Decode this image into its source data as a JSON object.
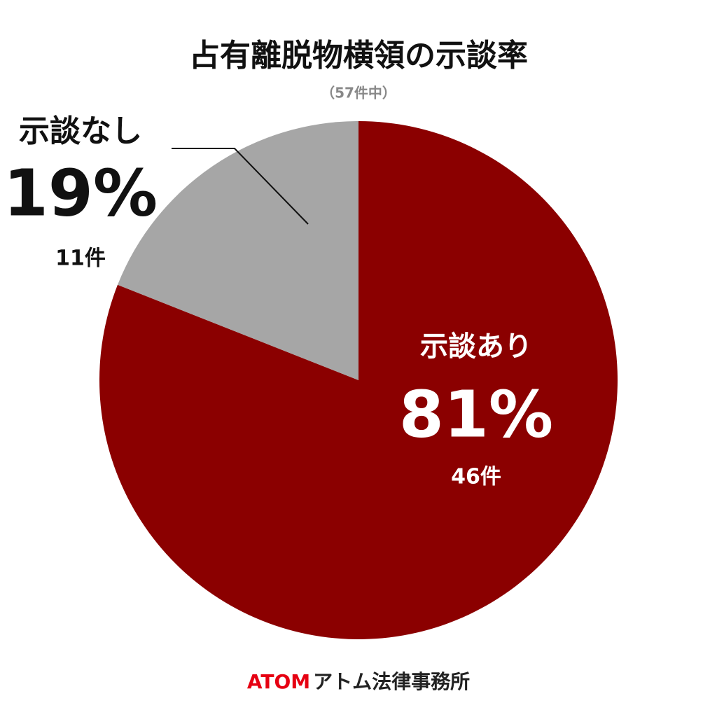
{
  "chart_data": {
    "type": "pie",
    "title": "占有離脱物横領の示談率",
    "subtitle": "（57件中）",
    "categories": [
      "示談あり",
      "示談なし"
    ],
    "values": [
      81,
      19
    ],
    "value_labels": [
      "81%",
      "19%"
    ],
    "counts": [
      46,
      11
    ],
    "count_labels": [
      "46件",
      "11件"
    ],
    "colors": [
      "#8b0000",
      "#a6a6a6"
    ]
  },
  "footer": {
    "brand": "ATOM",
    "name": "アトム法律事務所"
  }
}
